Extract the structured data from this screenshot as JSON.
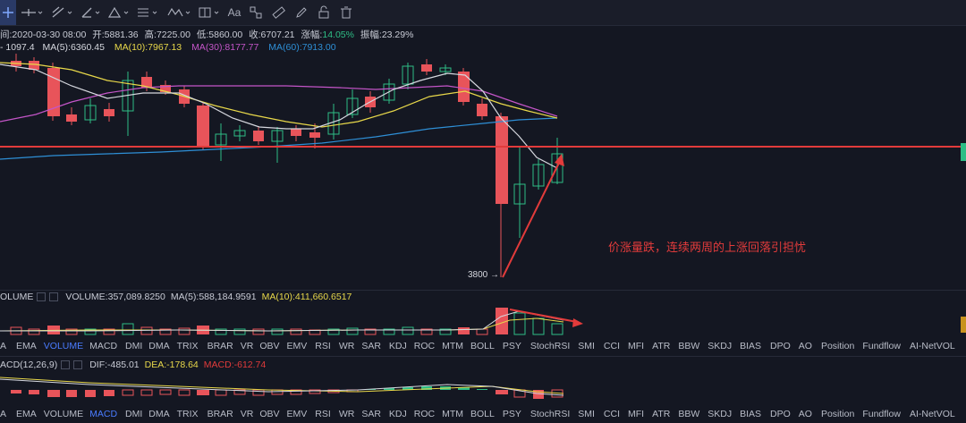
{
  "ohlc": {
    "time_label": "间:2020-03-30 08:00",
    "open_label": "开:5881.36",
    "high_label": "高:7225.00",
    "low_label": "低:5860.00",
    "close_label": "收:6707.21",
    "change_prefix": "涨幅:",
    "change_value": "14.05%",
    "amplitude_label": "振幅:23.29%"
  },
  "ma": {
    "partial": "- 1097.4",
    "ma5": "MA(5):6360.45",
    "ma10": "MA(10):7967.13",
    "ma30": "MA(30):8177.77",
    "ma60": "MA(60):7913.00"
  },
  "colors": {
    "up": "#2ebd85",
    "down": "#e8545a",
    "ma5": "#d6d8df",
    "ma10": "#e8d84a",
    "ma30": "#c455c8",
    "ma60": "#2e8fd6",
    "accent_red": "#e23b3b"
  },
  "annotation": {
    "text": "价涨量跌，连续两周的上涨回落引担忧",
    "low_marker": "3800 →"
  },
  "volume_header": {
    "title": "OLUME",
    "volume": "VOLUME:357,089.8250",
    "ma5": "MA(5):588,184.9591",
    "ma10": "MA(10):411,660.6517"
  },
  "indicator_tabs": [
    "A",
    "EMA",
    "VOLUME",
    "MACD",
    "DMI",
    "DMA",
    "TRIX",
    "BRAR",
    "VR",
    "OBV",
    "EMV",
    "RSI",
    "WR",
    "SAR",
    "KDJ",
    "ROC",
    "MTM",
    "BOLL",
    "PSY",
    "StochRSI",
    "SMI",
    "CCI",
    "MFI",
    "ATR",
    "BBW",
    "SKDJ",
    "BIAS",
    "DPO",
    "AO",
    "Position",
    "Fundflow",
    "AI-NetVOL"
  ],
  "active_tab_row1": "VOLUME",
  "active_tab_row2": "MACD",
  "macd_header": {
    "title": "ACD(12,26,9)",
    "dif": "DIF:-485.01",
    "dea": "DEA:-178.64",
    "macd": "MACD:-612.74"
  },
  "toolbar_icons": [
    "crosshair-icon",
    "horizontal-line-icon",
    "trend-line-icon",
    "fibonacci-icon",
    "shapes-icon",
    "text-lines-icon",
    "wave-icon",
    "measure-icon",
    "text-tool-icon",
    "pattern-icon",
    "ruler-icon",
    "pencil-icon",
    "lock-icon",
    "trash-icon"
  ],
  "toolbar_text_label": "Aa"
}
